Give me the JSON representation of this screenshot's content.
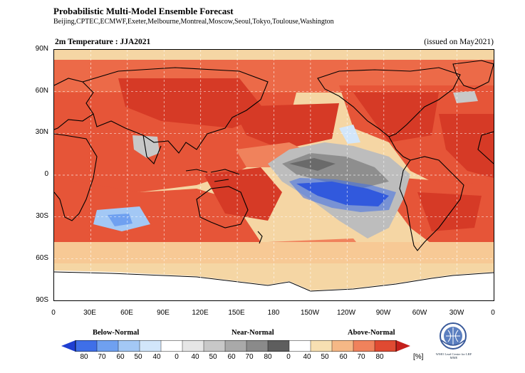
{
  "header": {
    "title": "Probabilistic Multi-Model Ensemble Forecast",
    "centers": "Beijing,CPTEC,ECMWF,Exeter,Melbourne,Montreal,Moscow,Seoul,Tokyo,Toulouse,Washington",
    "map_title": "2m Temperature : JJA2021",
    "issued": "(issued on May2021)"
  },
  "axes": {
    "lat_labels": [
      "90N",
      "60N",
      "30N",
      "0",
      "30S",
      "60S",
      "90S"
    ],
    "lon_labels": [
      "0",
      "30E",
      "60E",
      "90E",
      "120E",
      "150E",
      "180",
      "150W",
      "120W",
      "90W",
      "60W",
      "30W",
      "0"
    ]
  },
  "legend": {
    "categories": [
      "Below-Normal",
      "Near-Normal",
      "Above-Normal"
    ],
    "below_ticks": [
      "80",
      "70",
      "60",
      "50",
      "40"
    ],
    "near_ticks": [
      "0",
      "40",
      "50",
      "60",
      "70",
      "80"
    ],
    "above_ticks": [
      "0",
      "40",
      "50",
      "60",
      "70",
      "80"
    ],
    "unit": "[%]",
    "below_colors": [
      "#1f3fd1",
      "#3f6fe8",
      "#6fa0f0",
      "#a3c8f5",
      "#d2e6fa"
    ],
    "near_colors": [
      "#ffffff",
      "#e6e6e6",
      "#c8c8c8",
      "#a9a9a9",
      "#8a8a8a",
      "#5e5e5e"
    ],
    "above_colors": [
      "#ffffff",
      "#f7e0b2",
      "#f5b886",
      "#f0825c",
      "#e04a32",
      "#c4201c"
    ]
  },
  "logo": {
    "icon": "wmo-emblem-icon",
    "caption": "WMO Lead Centre for LRF MME"
  }
}
